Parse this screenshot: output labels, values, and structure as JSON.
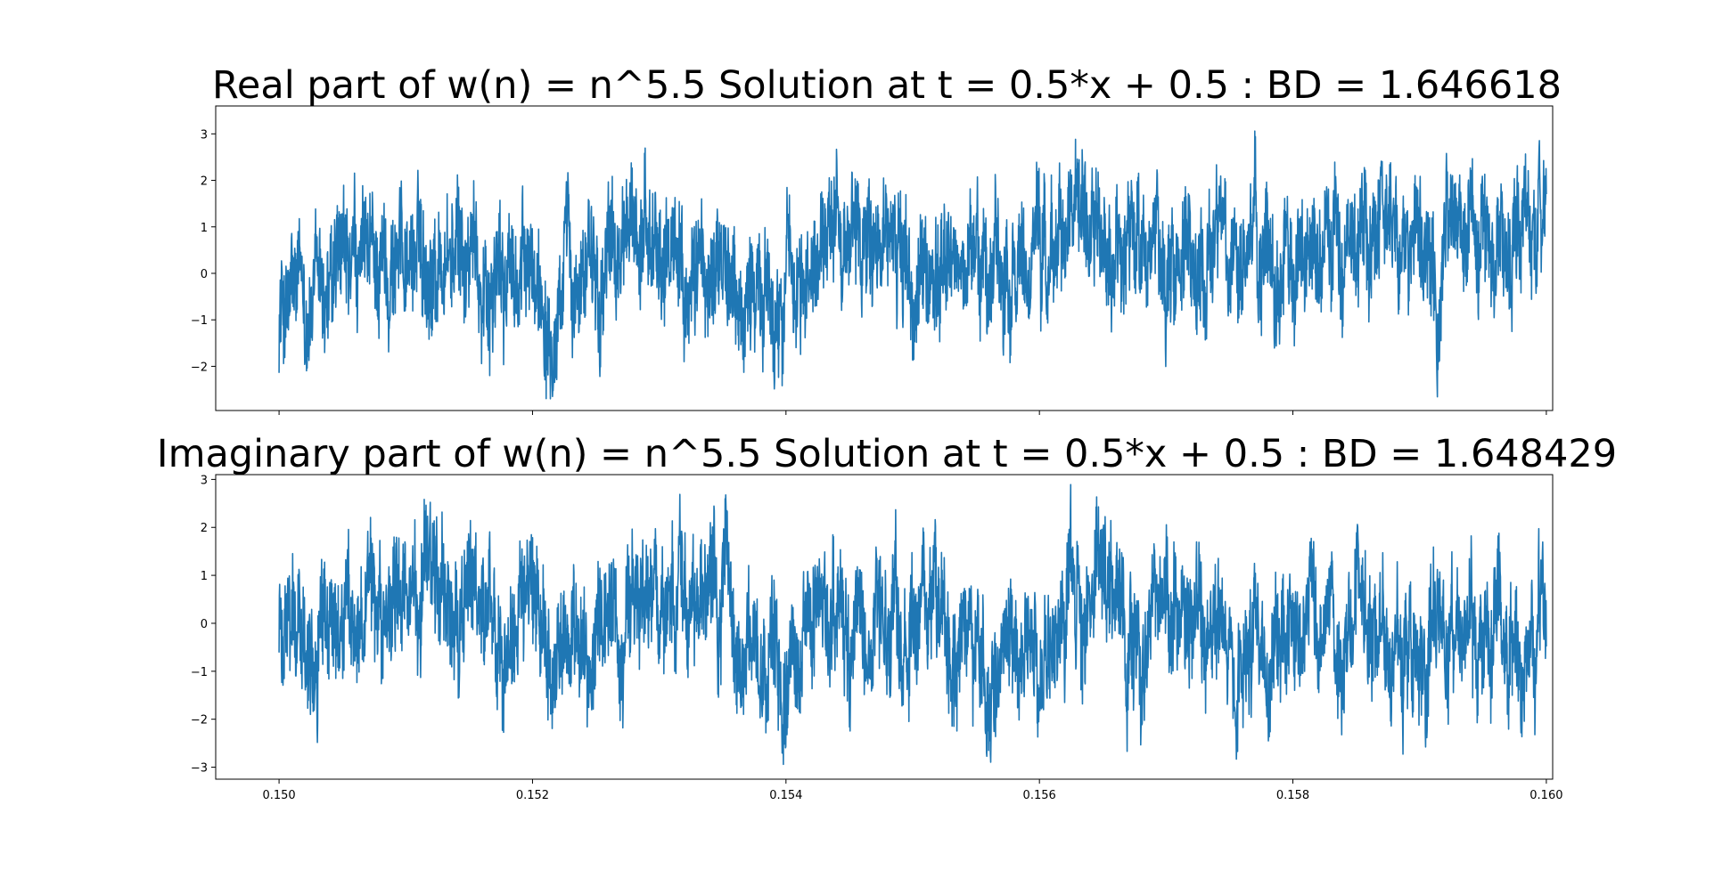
{
  "chart_data": [
    {
      "type": "line",
      "title": "Real part of w(n) = n^5.5 Solution at t = 0.5*x + 0.5 : BD = 1.646618",
      "xlabel": "",
      "ylabel": "",
      "xlim": [
        0.1495,
        0.16005
      ],
      "ylim": [
        -2.95,
        3.6
      ],
      "xticks": [
        0.15,
        0.152,
        0.154,
        0.156,
        0.158,
        0.16
      ],
      "xtick_labels": [],
      "yticks": [
        -2,
        -1,
        0,
        1,
        2,
        3
      ],
      "ytick_labels": [
        "−2",
        "−1",
        "0",
        "1",
        "2",
        "3"
      ],
      "grid": false,
      "color": "#1f77b4",
      "series": [
        {
          "x": [
            0.15,
            0.1505,
            0.151,
            0.1515,
            0.152,
            0.1525,
            0.153,
            0.1535,
            0.154,
            0.1545,
            0.155,
            0.1555,
            0.156,
            0.1565,
            0.157,
            0.1575,
            0.158,
            0.1585,
            0.159,
            0.1595,
            0.16
          ],
          "y": [
            -0.8,
            -0.5,
            0.6,
            0.2,
            -0.2,
            -0.1,
            0.6,
            0.1,
            -0.4,
            0.7,
            0.0,
            -0.1,
            0.4,
            1.0,
            0.6,
            0.3,
            0.5,
            1.2,
            0.4,
            0.6,
            1.0
          ],
          "min": -2.7,
          "max": 3.25,
          "oscillation": "dense high-frequency noise, roughly ±1.6 around the values"
        }
      ]
    },
    {
      "type": "line",
      "title": "Imaginary part of w(n) = n^5.5 Solution at t = 0.5*x + 0.5 : BD = 1.648429",
      "xlabel": "",
      "ylabel": "",
      "xlim": [
        0.1495,
        0.16005
      ],
      "ylim": [
        -3.25,
        3.1
      ],
      "xticks": [
        0.15,
        0.152,
        0.154,
        0.156,
        0.158,
        0.16
      ],
      "xtick_labels": [
        "0.150",
        "0.152",
        "0.154",
        "0.156",
        "0.158",
        "0.160"
      ],
      "yticks": [
        -3,
        -2,
        -1,
        0,
        1,
        2,
        3
      ],
      "ytick_labels": [
        "−3",
        "−2",
        "−1",
        "0",
        "1",
        "2",
        "3"
      ],
      "grid": false,
      "color": "#1f77b4",
      "series": [
        {
          "x": [
            0.15,
            0.1505,
            0.151,
            0.1515,
            0.152,
            0.1525,
            0.153,
            0.1535,
            0.154,
            0.1545,
            0.155,
            0.1555,
            0.156,
            0.1565,
            0.157,
            0.1575,
            0.158,
            0.1585,
            0.159,
            0.1595,
            0.16
          ],
          "y": [
            0.0,
            -0.4,
            0.4,
            0.5,
            -0.3,
            -0.4,
            0.4,
            0.2,
            -0.6,
            0.0,
            0.2,
            -0.4,
            -0.8,
            0.3,
            0.1,
            -0.5,
            0.1,
            0.1,
            -0.5,
            -0.5,
            -0.4
          ],
          "min": -2.95,
          "max": 2.95,
          "oscillation": "dense high-frequency noise, roughly ±1.6 around the values"
        }
      ]
    }
  ]
}
